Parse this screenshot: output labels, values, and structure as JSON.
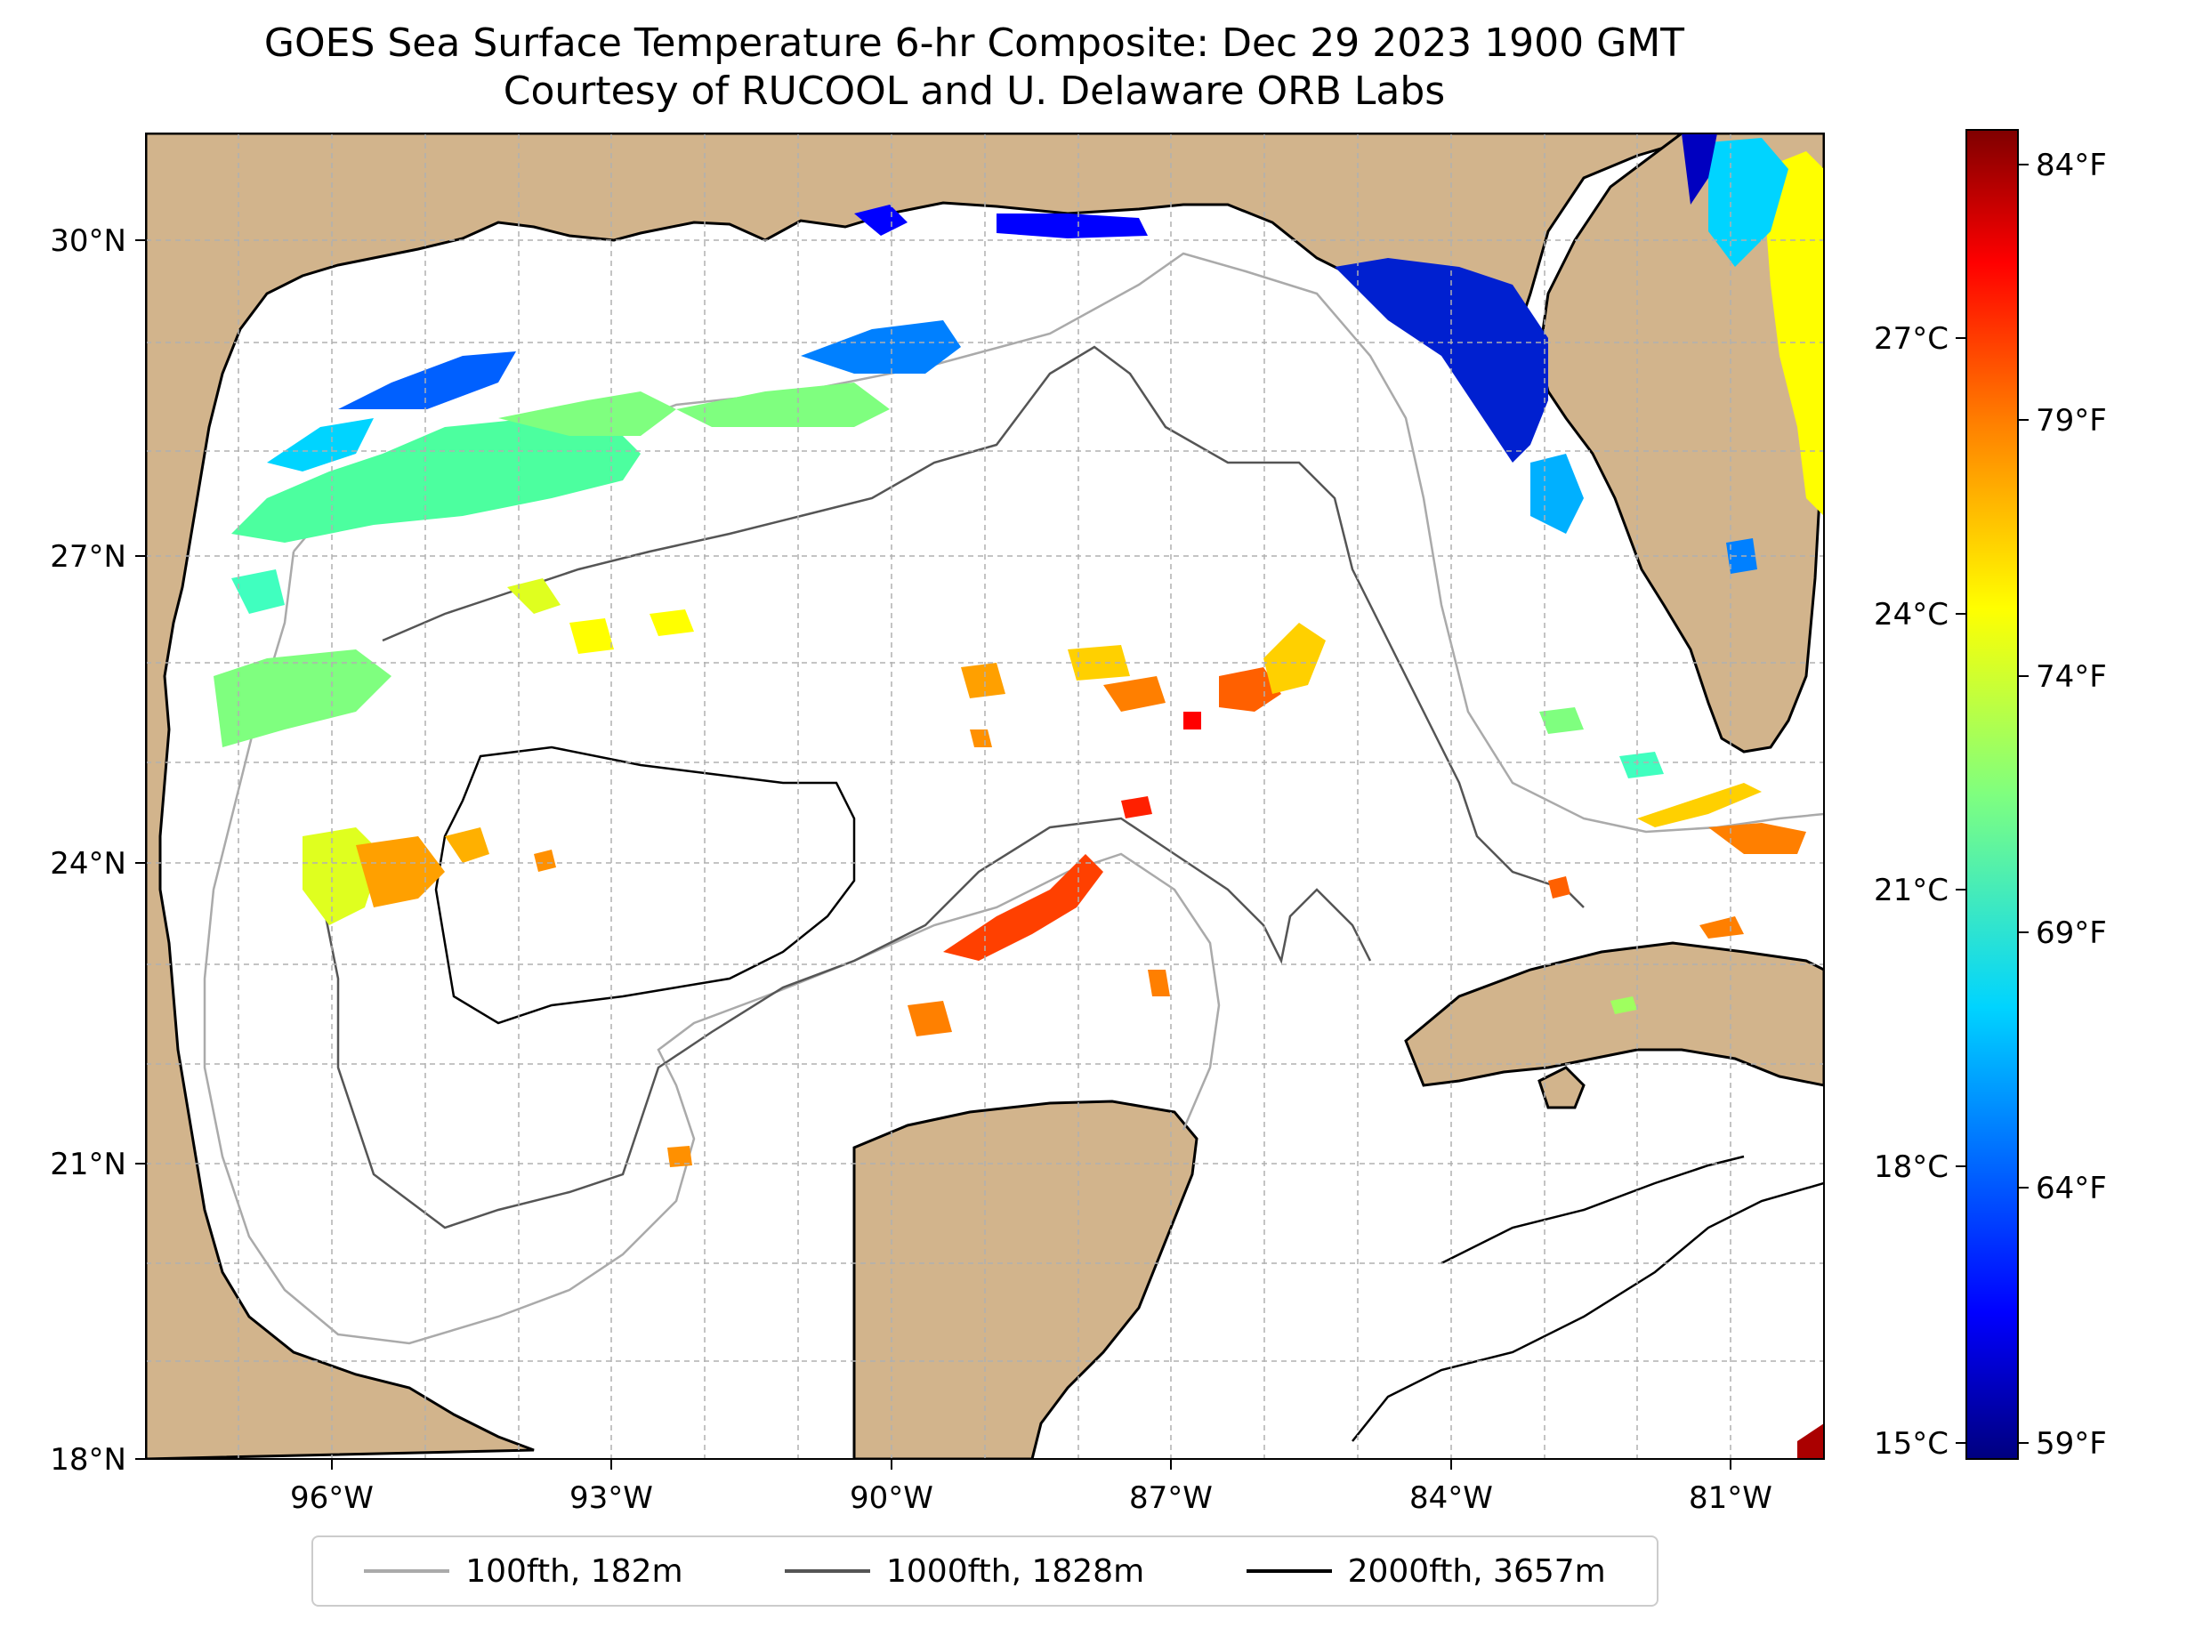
{
  "title": {
    "line1": "GOES Sea Surface Temperature 6-hr Composite: Dec 29 2023 1900 GMT",
    "line2": "Courtesy of RUCOOL and U. Delaware ORB Labs"
  },
  "map": {
    "lat_range": [
      18,
      31
    ],
    "lon_range": [
      -98,
      -80
    ],
    "lat_ticks": [
      {
        "value": 18,
        "label": "18°N"
      },
      {
        "value": 21,
        "label": "21°N"
      },
      {
        "value": 24,
        "label": "24°N"
      },
      {
        "value": 27,
        "label": "27°N"
      },
      {
        "value": 30,
        "label": "30°N"
      }
    ],
    "lon_ticks": [
      {
        "value": -96,
        "label": "96°W"
      },
      {
        "value": -93,
        "label": "93°W"
      },
      {
        "value": -90,
        "label": "90°W"
      },
      {
        "value": -87,
        "label": "87°W"
      },
      {
        "value": -84,
        "label": "84°W"
      },
      {
        "value": -81,
        "label": "81°W"
      }
    ],
    "land_color": "#d2b48c",
    "ocean_color": "#ffffff",
    "grid": true
  },
  "colorbar": {
    "celsius_labels": [
      "15°C",
      "18°C",
      "21°C",
      "24°C",
      "27°C"
    ],
    "fahrenheit_labels": [
      "59°F",
      "64°F",
      "69°F",
      "74°F",
      "79°F",
      "84°F"
    ],
    "colormap": "jet",
    "colors": [
      "#00007f",
      "#0000ff",
      "#007fff",
      "#00ffff",
      "#7fff7f",
      "#ffff00",
      "#ff7f00",
      "#ff0000",
      "#7f0000"
    ]
  },
  "legend": [
    {
      "label": "100fth, 182m",
      "color": "#aaaaaa"
    },
    {
      "label": "1000fth, 1828m",
      "color": "#555555"
    },
    {
      "label": "2000fth, 3657m",
      "color": "#000000"
    }
  ]
}
